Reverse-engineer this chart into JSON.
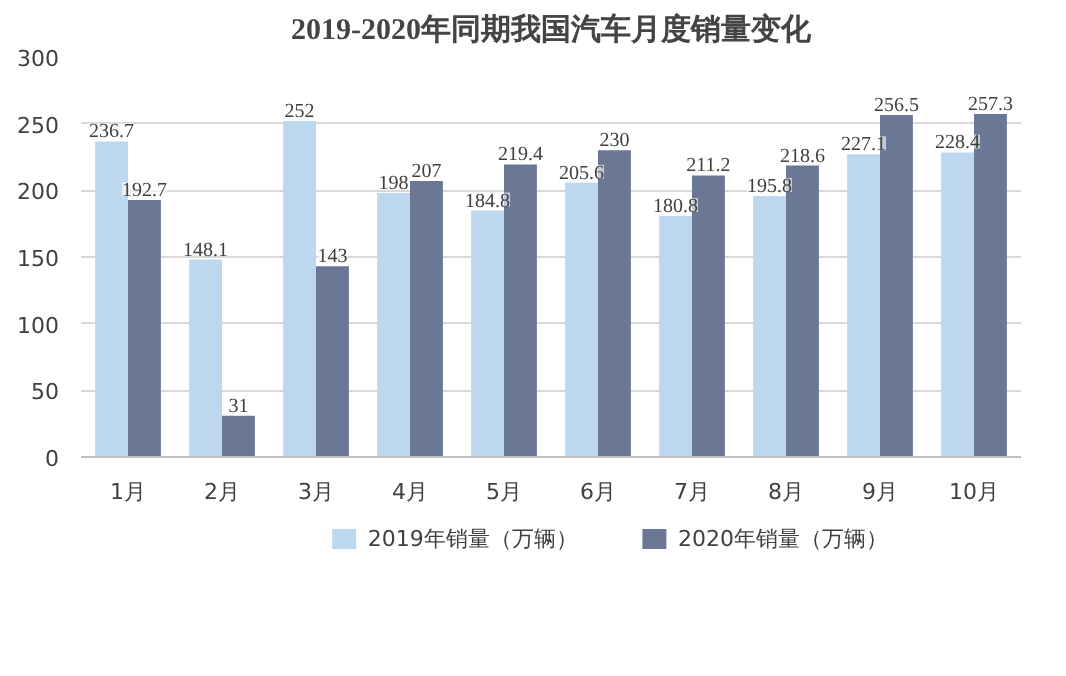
{
  "chart_data": {
    "type": "bar",
    "title": "2019-2020年同期我国汽车月度销量变化",
    "categories": [
      "1月",
      "2月",
      "3月",
      "4月",
      "5月",
      "6月",
      "7月",
      "8月",
      "9月",
      "10月"
    ],
    "series": [
      {
        "name": "2019年销量（万辆）",
        "color": "#bdd7ee",
        "values": [
          236.7,
          148.1,
          252,
          198,
          184.8,
          205.6,
          180.8,
          195.8,
          227.1,
          228.4
        ]
      },
      {
        "name": "2020年销量（万辆）",
        "color": "#6a7896",
        "values": [
          192.7,
          31,
          143,
          207,
          219.4,
          230,
          211.2,
          218.6,
          256.5,
          257.3
        ]
      }
    ],
    "ylim": [
      0,
      300
    ],
    "yticks": [
      0,
      50,
      100,
      150,
      200,
      250,
      300
    ],
    "grid": "y",
    "legend": "bottom",
    "data_labels": true
  }
}
